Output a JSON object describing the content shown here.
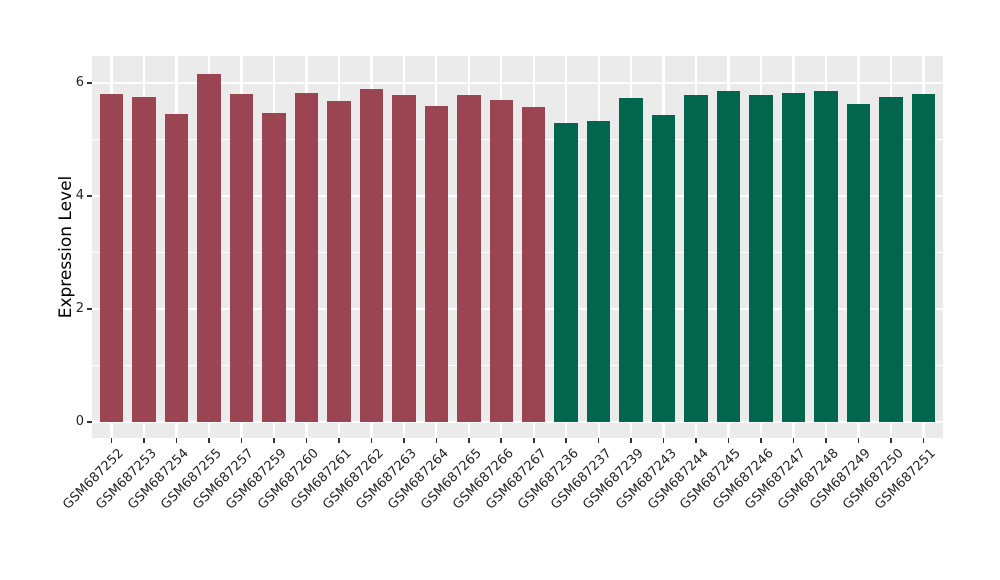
{
  "chart_data": {
    "type": "bar",
    "title": "",
    "xlabel": "",
    "ylabel": "Expression Level",
    "ylim": [
      0,
      6.48
    ],
    "yticks_major": [
      0,
      2,
      4,
      6
    ],
    "yticks_minor": [
      1,
      3,
      5
    ],
    "ytick_labels": [
      "0",
      "2",
      "4",
      "6"
    ],
    "grid": "on",
    "legend": "none",
    "panel_background": "#EBEBEB",
    "grid_color": "#FFFFFF",
    "tick_color": "#333333",
    "text_color": "#262626",
    "group_colors": {
      "maroon": "#9B4452",
      "green": "#01664B"
    },
    "categories": [
      "GSM687252",
      "GSM687253",
      "GSM687254",
      "GSM687255",
      "GSM687257",
      "GSM687259",
      "GSM687260",
      "GSM687261",
      "GSM687262",
      "GSM687263",
      "GSM687264",
      "GSM687265",
      "GSM687266",
      "GSM687267",
      "GSM687236",
      "GSM687237",
      "GSM687239",
      "GSM687243",
      "GSM687244",
      "GSM687245",
      "GSM687246",
      "GSM687247",
      "GSM687248",
      "GSM687249",
      "GSM687250",
      "GSM687251"
    ],
    "values": [
      5.81,
      5.76,
      5.45,
      6.16,
      5.81,
      5.47,
      5.82,
      5.68,
      5.89,
      5.79,
      5.6,
      5.79,
      5.7,
      5.58,
      5.3,
      5.33,
      5.73,
      5.43,
      5.79,
      5.85,
      5.79,
      5.82,
      5.85,
      5.63,
      5.75,
      5.81
    ],
    "groups": [
      "maroon",
      "maroon",
      "maroon",
      "maroon",
      "maroon",
      "maroon",
      "maroon",
      "maroon",
      "maroon",
      "maroon",
      "maroon",
      "maroon",
      "maroon",
      "maroon",
      "green",
      "green",
      "green",
      "green",
      "green",
      "green",
      "green",
      "green",
      "green",
      "green",
      "green",
      "green"
    ]
  }
}
